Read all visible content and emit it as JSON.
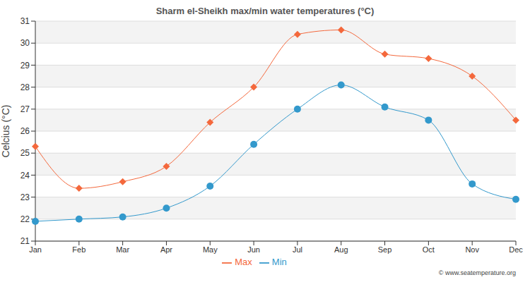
{
  "chart_data": {
    "type": "line",
    "title": "Sharm el-Sheikh max/min water temperatures (°C)",
    "y_label": "Celcius (°C)",
    "annotation": "© www.seatemperature.org",
    "categories": [
      "Jan",
      "Feb",
      "Mar",
      "Apr",
      "May",
      "Jun",
      "Jul",
      "Aug",
      "Sep",
      "Oct",
      "Nov",
      "Dec"
    ],
    "series": [
      {
        "name": "Max",
        "color": "#f4683c",
        "marker": "diamond",
        "values": [
          25.3,
          23.4,
          23.7,
          24.4,
          26.4,
          28.0,
          30.4,
          30.6,
          29.5,
          29.3,
          28.5,
          26.5
        ]
      },
      {
        "name": "Min",
        "color": "#3399cc",
        "marker": "circle",
        "values": [
          21.9,
          22.0,
          22.1,
          22.5,
          23.5,
          25.4,
          27.0,
          28.1,
          27.1,
          26.5,
          23.6,
          22.9
        ]
      }
    ],
    "ylim": [
      21,
      31
    ],
    "yticks": [
      21,
      22,
      23,
      24,
      25,
      26,
      27,
      28,
      29,
      30,
      31
    ],
    "grid": true,
    "legend": "bottom"
  }
}
